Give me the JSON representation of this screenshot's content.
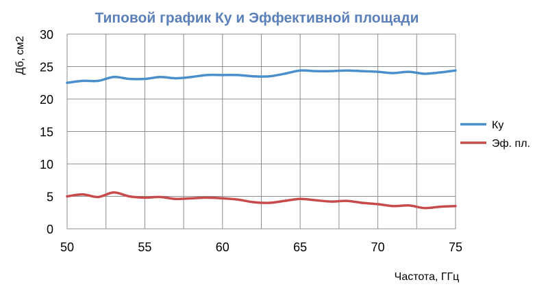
{
  "chart_data": {
    "type": "line",
    "title": "Типовой график Ку и Эффективной площади",
    "xlabel": "Частота, ГГц",
    "ylabel": "Дб, см2",
    "xlim": [
      50,
      75
    ],
    "ylim": [
      0,
      30
    ],
    "x_ticks": [
      "50",
      "55",
      "60",
      "65",
      "70",
      "75"
    ],
    "y_ticks": [
      "0",
      "5",
      "10",
      "15",
      "20",
      "25",
      "30"
    ],
    "grid": true,
    "legend_position": "right",
    "x": [
      50,
      51,
      52,
      53,
      54,
      55,
      56,
      57,
      58,
      59,
      60,
      61,
      62,
      63,
      64,
      65,
      66,
      67,
      68,
      69,
      70,
      71,
      72,
      73,
      74,
      75
    ],
    "series": [
      {
        "name": "Ку",
        "color": "#4a8fcc",
        "values": [
          22.5,
          22.8,
          22.8,
          23.4,
          23.1,
          23.1,
          23.4,
          23.2,
          23.4,
          23.7,
          23.7,
          23.7,
          23.5,
          23.5,
          23.9,
          24.4,
          24.3,
          24.3,
          24.4,
          24.3,
          24.2,
          24.0,
          24.2,
          23.9,
          24.1,
          24.4
        ]
      },
      {
        "name": "Эф. пл.",
        "color": "#c84a4a",
        "values": [
          5.0,
          5.3,
          4.9,
          5.6,
          5.0,
          4.8,
          4.9,
          4.6,
          4.7,
          4.8,
          4.7,
          4.5,
          4.1,
          4.0,
          4.3,
          4.6,
          4.4,
          4.2,
          4.3,
          4.0,
          3.8,
          3.5,
          3.6,
          3.2,
          3.4,
          3.5
        ]
      }
    ]
  },
  "colors": {
    "title": "#5b7fb8",
    "grid": "#8c8c8c"
  }
}
